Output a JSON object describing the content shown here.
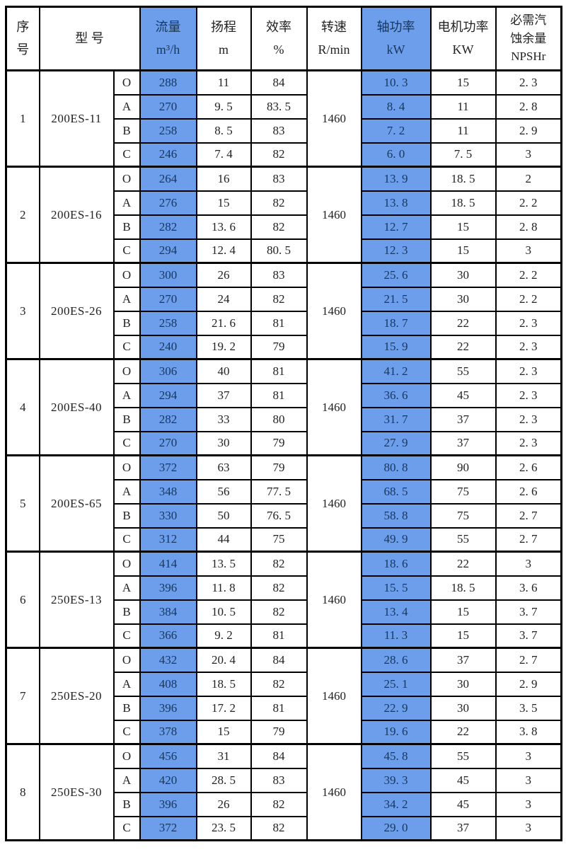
{
  "colors": {
    "highlight_bg": "#6D9EEB",
    "highlight_text": "#17375E",
    "border": "#000000",
    "text": "#222222"
  },
  "header": {
    "seq": "序\n号",
    "model": "型 号",
    "flow": "流量\nm³/h",
    "head": "扬程\nm",
    "eff": "效率\n%",
    "speed": "转速\nR/min",
    "shaft": "轴功率\nkW",
    "motor": "电机功率\nKW",
    "npshr": "必需汽\n蚀余量\nNPSHr"
  },
  "groups": [
    {
      "seq": "1",
      "model": "200ES-11",
      "speed": "1460",
      "rows": [
        {
          "grade": "O",
          "flow": "288",
          "head": "11",
          "eff": "84",
          "shaft": "10. 3",
          "motor": "15",
          "npshr": "2. 3"
        },
        {
          "grade": "A",
          "flow": "270",
          "head": "9. 5",
          "eff": "83. 5",
          "shaft": "8. 4",
          "motor": "11",
          "npshr": "2. 8"
        },
        {
          "grade": "B",
          "flow": "258",
          "head": "8. 5",
          "eff": "83",
          "shaft": "7. 2",
          "motor": "11",
          "npshr": "2. 9"
        },
        {
          "grade": "C",
          "flow": "246",
          "head": "7. 4",
          "eff": "82",
          "shaft": "6. 0",
          "motor": "7. 5",
          "npshr": "3"
        }
      ]
    },
    {
      "seq": "2",
      "model": "200ES-16",
      "speed": "1460",
      "rows": [
        {
          "grade": "O",
          "flow": "264",
          "head": "16",
          "eff": "83",
          "shaft": "13. 9",
          "motor": "18. 5",
          "npshr": "2"
        },
        {
          "grade": "A",
          "flow": "276",
          "head": "15",
          "eff": "82",
          "shaft": "13. 8",
          "motor": "18. 5",
          "npshr": "2. 2"
        },
        {
          "grade": "B",
          "flow": "282",
          "head": "13. 6",
          "eff": "82",
          "shaft": "12. 7",
          "motor": "15",
          "npshr": "2. 8"
        },
        {
          "grade": "C",
          "flow": "294",
          "head": "12. 4",
          "eff": "80. 5",
          "shaft": "12. 3",
          "motor": "15",
          "npshr": "3"
        }
      ]
    },
    {
      "seq": "3",
      "model": "200ES-26",
      "speed": "1460",
      "rows": [
        {
          "grade": "O",
          "flow": "300",
          "head": "26",
          "eff": "83",
          "shaft": "25. 6",
          "motor": "30",
          "npshr": "2. 2"
        },
        {
          "grade": "A",
          "flow": "270",
          "head": "24",
          "eff": "82",
          "shaft": "21. 5",
          "motor": "30",
          "npshr": "2. 2"
        },
        {
          "grade": "B",
          "flow": "258",
          "head": "21. 6",
          "eff": "81",
          "shaft": "18. 7",
          "motor": "22",
          "npshr": "2. 3"
        },
        {
          "grade": "C",
          "flow": "240",
          "head": "19. 2",
          "eff": "79",
          "shaft": "15. 9",
          "motor": "22",
          "npshr": "2. 3"
        }
      ]
    },
    {
      "seq": "4",
      "model": "200ES-40",
      "speed": "1460",
      "rows": [
        {
          "grade": "O",
          "flow": "306",
          "head": "40",
          "eff": "81",
          "shaft": "41. 2",
          "motor": "55",
          "npshr": "2. 3"
        },
        {
          "grade": "A",
          "flow": "294",
          "head": "37",
          "eff": "81",
          "shaft": "36. 6",
          "motor": "45",
          "npshr": "2. 3"
        },
        {
          "grade": "B",
          "flow": "282",
          "head": "33",
          "eff": "80",
          "shaft": "31. 7",
          "motor": "37",
          "npshr": "2. 3"
        },
        {
          "grade": "C",
          "flow": "270",
          "head": "30",
          "eff": "79",
          "shaft": "27. 9",
          "motor": "37",
          "npshr": "2. 3"
        }
      ]
    },
    {
      "seq": "5",
      "model": "200ES-65",
      "speed": "1460",
      "rows": [
        {
          "grade": "O",
          "flow": "372",
          "head": "63",
          "eff": "79",
          "shaft": "80. 8",
          "motor": "90",
          "npshr": "2. 6"
        },
        {
          "grade": "A",
          "flow": "348",
          "head": "56",
          "eff": "77. 5",
          "shaft": "68. 5",
          "motor": "75",
          "npshr": "2. 6"
        },
        {
          "grade": "B",
          "flow": "330",
          "head": "50",
          "eff": "76. 5",
          "shaft": "58. 8",
          "motor": "75",
          "npshr": "2. 7"
        },
        {
          "grade": "C",
          "flow": "312",
          "head": "44",
          "eff": "75",
          "shaft": "49. 9",
          "motor": "55",
          "npshr": "2. 7"
        }
      ]
    },
    {
      "seq": "6",
      "model": "250ES-13",
      "speed": "1460",
      "rows": [
        {
          "grade": "O",
          "flow": "414",
          "head": "13. 5",
          "eff": "82",
          "shaft": "18. 6",
          "motor": "22",
          "npshr": "3"
        },
        {
          "grade": "A",
          "flow": "396",
          "head": "11. 8",
          "eff": "82",
          "shaft": "15. 5",
          "motor": "18. 5",
          "npshr": "3. 6"
        },
        {
          "grade": "B",
          "flow": "384",
          "head": "10. 5",
          "eff": "82",
          "shaft": "13. 4",
          "motor": "15",
          "npshr": "3. 7"
        },
        {
          "grade": "C",
          "flow": "366",
          "head": "9. 2",
          "eff": "81",
          "shaft": "11. 3",
          "motor": "15",
          "npshr": "3. 7"
        }
      ]
    },
    {
      "seq": "7",
      "model": "250ES-20",
      "speed": "1460",
      "rows": [
        {
          "grade": "O",
          "flow": "432",
          "head": "20. 4",
          "eff": "84",
          "shaft": "28. 6",
          "motor": "37",
          "npshr": "2. 7"
        },
        {
          "grade": "A",
          "flow": "408",
          "head": "18. 5",
          "eff": "82",
          "shaft": "25. 1",
          "motor": "30",
          "npshr": "2. 9"
        },
        {
          "grade": "B",
          "flow": "396",
          "head": "17. 2",
          "eff": "81",
          "shaft": "22. 9",
          "motor": "30",
          "npshr": "3. 5"
        },
        {
          "grade": "C",
          "flow": "378",
          "head": "15",
          "eff": "79",
          "shaft": "19. 6",
          "motor": "22",
          "npshr": "3. 8"
        }
      ]
    },
    {
      "seq": "8",
      "model": "250ES-30",
      "speed": "1460",
      "rows": [
        {
          "grade": "O",
          "flow": "456",
          "head": "31",
          "eff": "84",
          "shaft": "45. 8",
          "motor": "55",
          "npshr": "3"
        },
        {
          "grade": "A",
          "flow": "420",
          "head": "28. 5",
          "eff": "83",
          "shaft": "39. 3",
          "motor": "45",
          "npshr": "3"
        },
        {
          "grade": "B",
          "flow": "396",
          "head": "26",
          "eff": "82",
          "shaft": "34. 2",
          "motor": "45",
          "npshr": "3"
        },
        {
          "grade": "C",
          "flow": "372",
          "head": "23. 5",
          "eff": "82",
          "shaft": "29. 0",
          "motor": "37",
          "npshr": "3"
        }
      ]
    }
  ]
}
